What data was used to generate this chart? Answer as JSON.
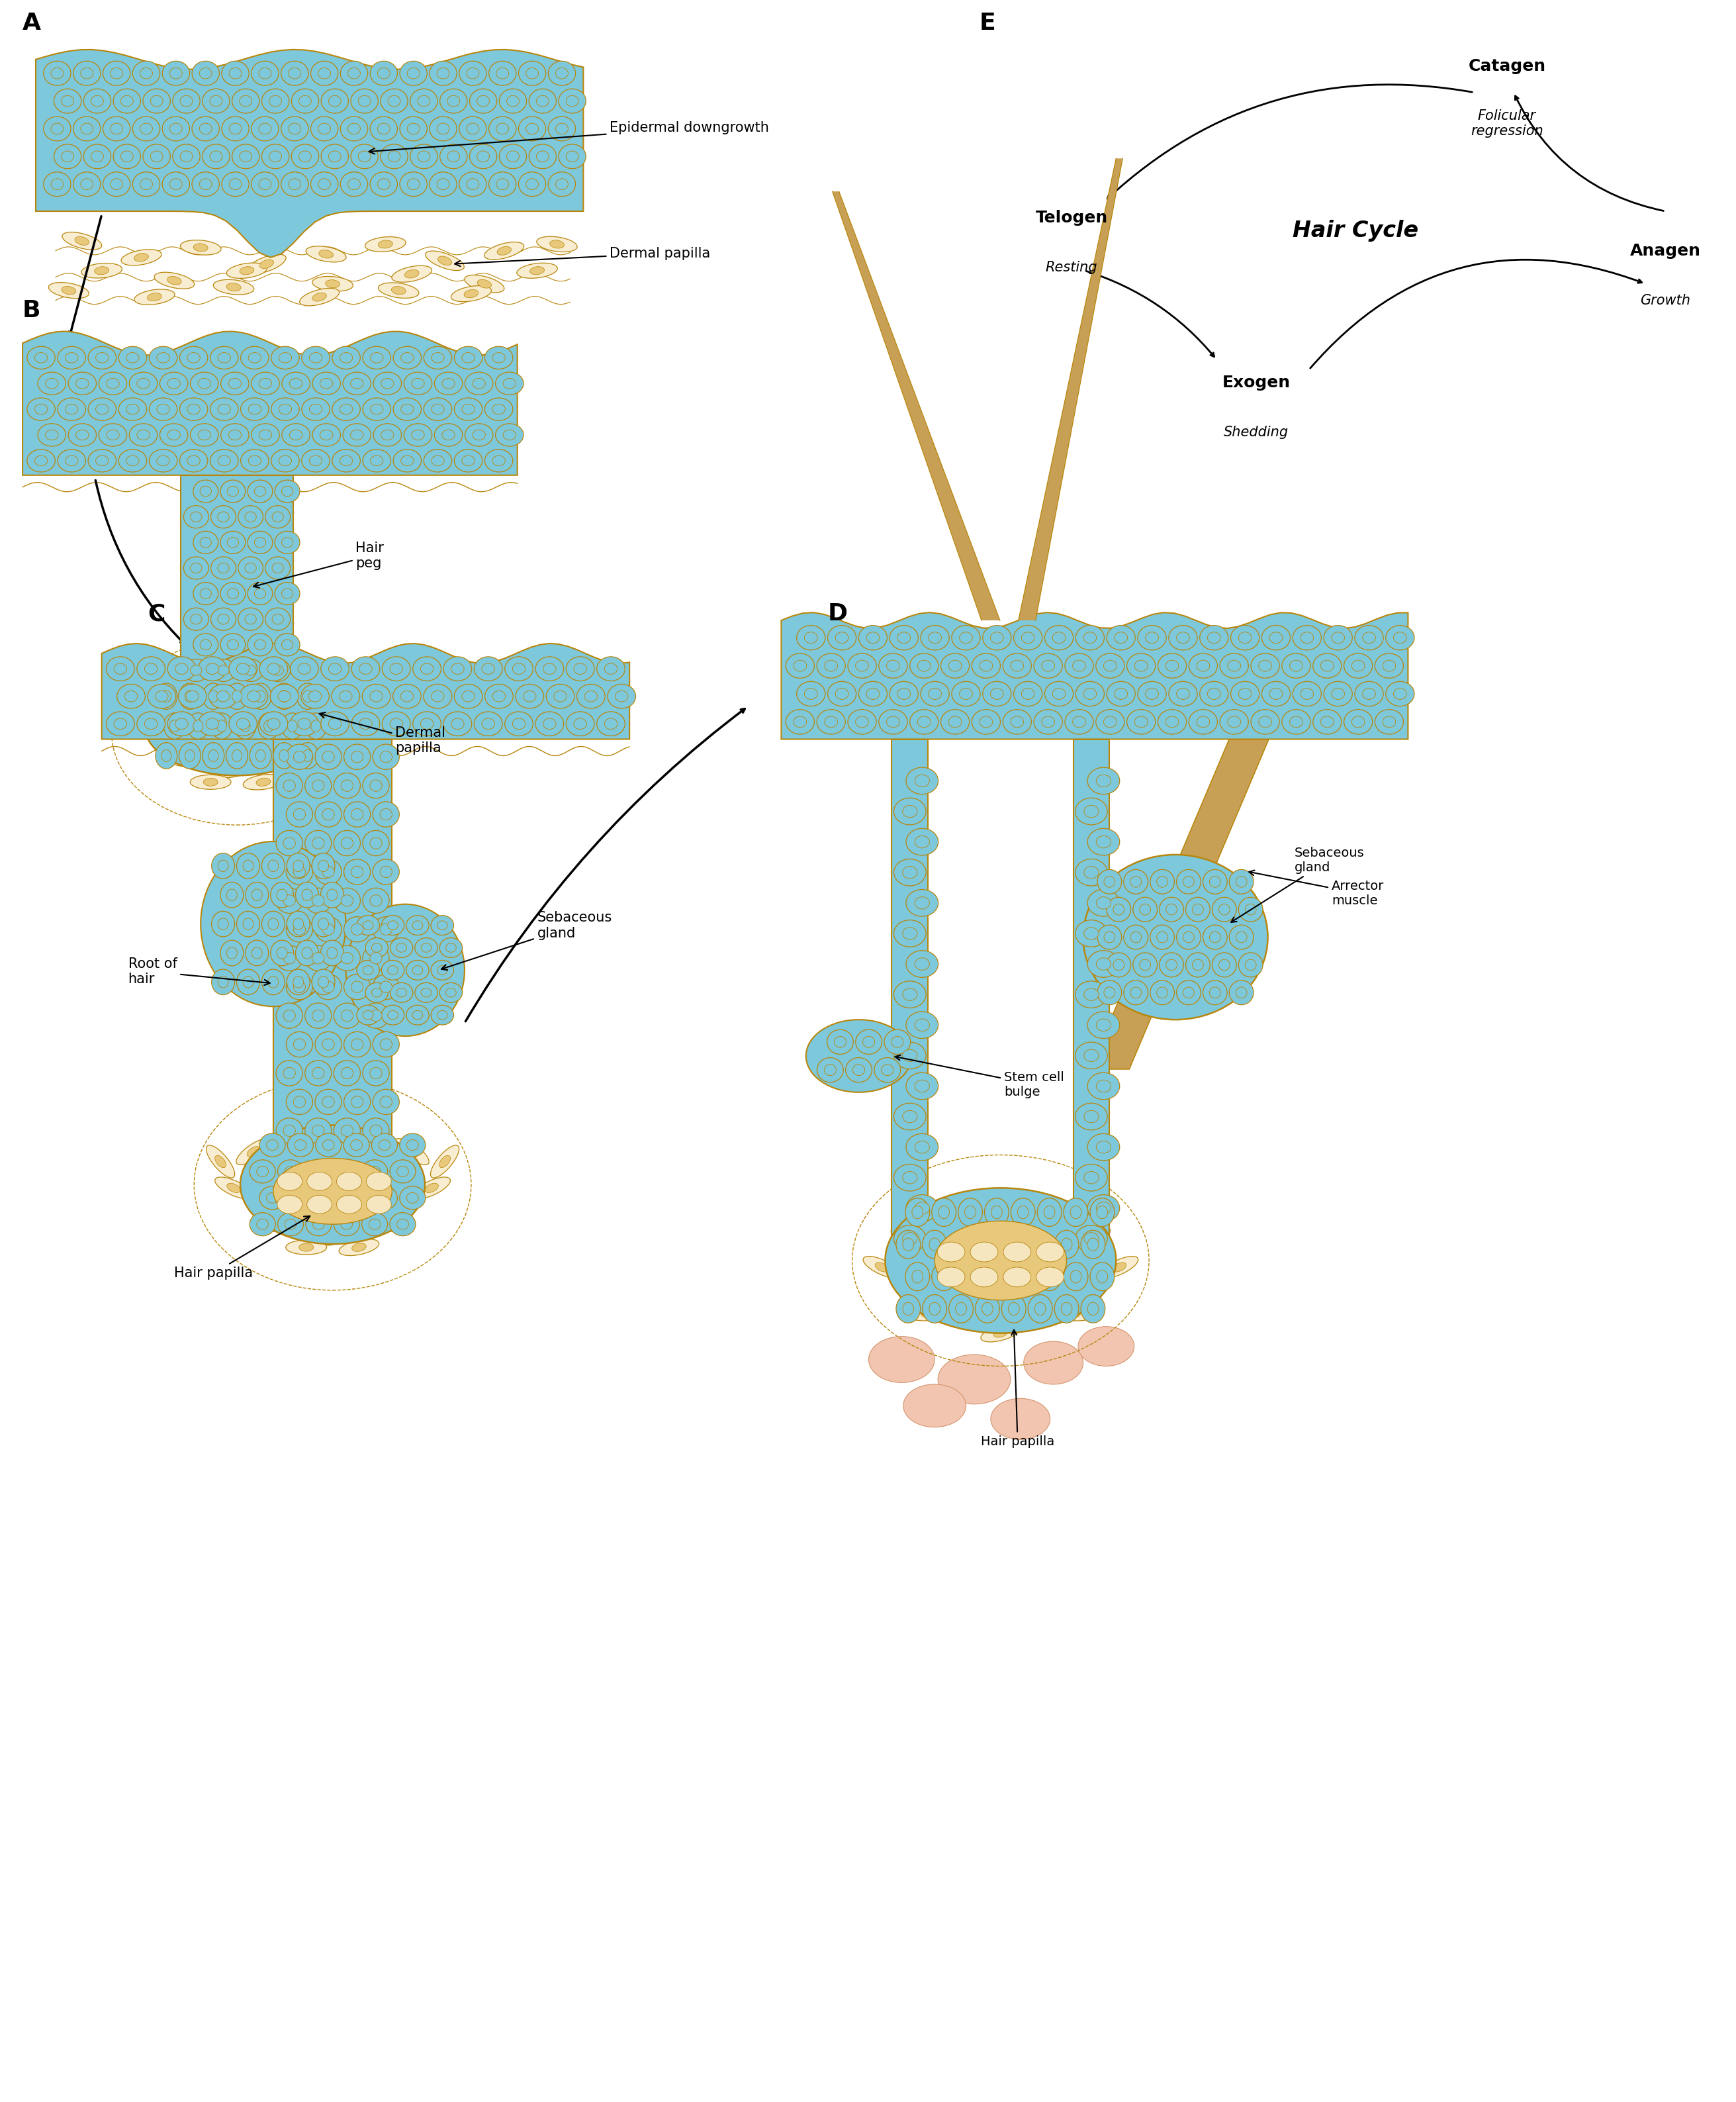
{
  "bg_color": "#ffffff",
  "blue": "#7EC8DC",
  "tan_outline": "#B8860B",
  "tan_fill": "#E8C87A",
  "tan_pale_fill": "#F5E6C0",
  "tan_spindle": "#E8C87A",
  "tan_spindle_pale": "#F8EDD0",
  "hair_brown": "#C8A055",
  "pink_fat": "#F2C5B0",
  "pink_fat_outline": "#D4956E",
  "label_A": "A",
  "label_B": "B",
  "label_C": "C",
  "label_D": "D",
  "label_E": "E",
  "catagen": "Catagen",
  "catagen_sub": "Folicular\nregression",
  "telogen": "Telogen",
  "telogen_sub": "Resting",
  "exogen": "Exogen",
  "exogen_sub": "Shedding",
  "anagen": "Anagen",
  "anagen_sub": "Growth",
  "hair_cycle": "Hair Cycle",
  "epidermal_downgrowth": "Epidermal downgrowth",
  "dermal_papilla_A": "Dermal papilla",
  "hair_peg": "Hair\npeg",
  "dermal_papilla_B": "Dermal\npapilla",
  "sebaceous_gland_C": "Sebaceous\ngland",
  "root_of_hair": "Root of\nhair",
  "hair_papilla_C": "Hair papilla",
  "sebaceous_gland_D": "Sebaceous\ngland",
  "stem_cell_bulge": "Stem cell\nbulge",
  "arrector_muscle": "Arrector\nmuscle",
  "hair_papilla_D": "Hair papilla"
}
